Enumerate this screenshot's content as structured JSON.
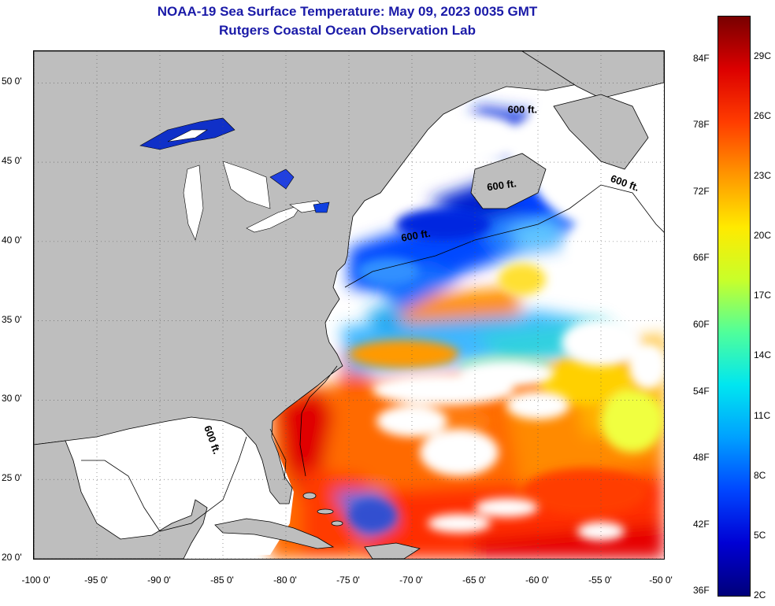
{
  "title": {
    "line1": "NOAA-19 Sea Surface Temperature:  May 09, 2023 0035 GMT",
    "line2": "Rutgers Coastal Ocean Observation Lab"
  },
  "map": {
    "lon_range": [
      -100,
      -50
    ],
    "lat_range": [
      20,
      52
    ],
    "lat_ticks": [
      {
        "value": 50,
        "label": "50 0'"
      },
      {
        "value": 45,
        "label": "45 0'"
      },
      {
        "value": 40,
        "label": "40 0'"
      },
      {
        "value": 35,
        "label": "35 0'"
      },
      {
        "value": 30,
        "label": "30 0'"
      },
      {
        "value": 25,
        "label": "25 0'"
      },
      {
        "value": 20,
        "label": "20 0'"
      }
    ],
    "lon_ticks": [
      {
        "value": -100,
        "label": "-100 0'"
      },
      {
        "value": -95,
        "label": "-95 0'"
      },
      {
        "value": -90,
        "label": "-90 0'"
      },
      {
        "value": -85,
        "label": "-85 0'"
      },
      {
        "value": -80,
        "label": "-80 0'"
      },
      {
        "value": -75,
        "label": "-75 0'"
      },
      {
        "value": -70,
        "label": "-70 0'"
      },
      {
        "value": -65,
        "label": "-65 0'"
      },
      {
        "value": -60,
        "label": "-60 0'"
      },
      {
        "value": -55,
        "label": "-55 0'"
      },
      {
        "value": -50,
        "label": "-50 0'"
      }
    ],
    "contour_label": "600 ft.",
    "contour_labels": [
      {
        "lon": -62.4,
        "lat": 48.1,
        "rot": 0
      },
      {
        "lon": -54.3,
        "lat": 43.8,
        "rot": 20
      },
      {
        "lon": -64.0,
        "lat": 43.2,
        "rot": -8
      },
      {
        "lon": -70.8,
        "lat": 40.0,
        "rot": -10
      },
      {
        "lon": -86.5,
        "lat": 28.3,
        "rot": 70
      }
    ],
    "colors": {
      "land": "#bebebe",
      "cloud": "#ffffff",
      "grid": "#555555"
    }
  },
  "colorbar": {
    "min_c": 2,
    "max_c": 31,
    "fahrenheit_labels": [
      "84F",
      "78F",
      "72F",
      "66F",
      "60F",
      "54F",
      "48F",
      "42F",
      "36F"
    ],
    "celsius_labels": [
      "29C",
      "26C",
      "23C",
      "20C",
      "17C",
      "14C",
      "11C",
      "8C",
      "5C",
      "2C"
    ],
    "colors": [
      "#00007a",
      "#0000d4",
      "#0046ff",
      "#00a0ff",
      "#00e6f0",
      "#50ff9a",
      "#c8ff2a",
      "#ffea00",
      "#ff9600",
      "#ff3c00",
      "#dc0000",
      "#780000"
    ]
  }
}
